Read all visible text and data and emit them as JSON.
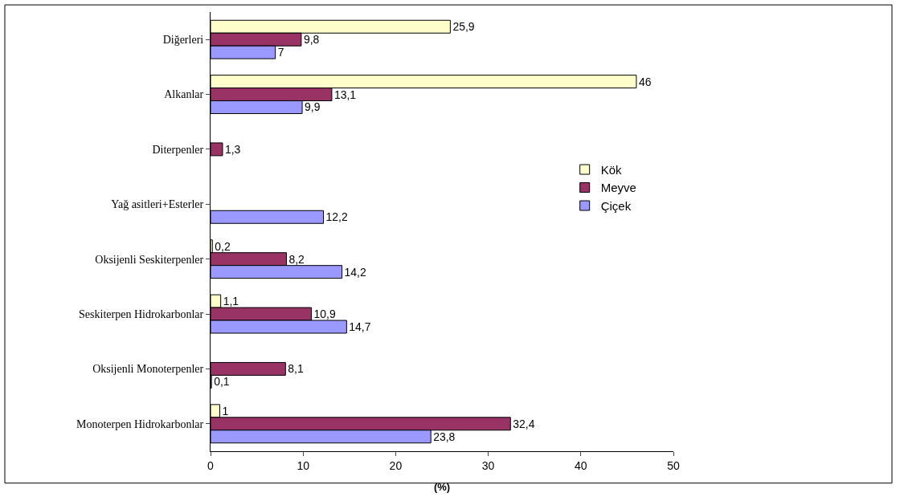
{
  "chart_data": {
    "type": "bar",
    "orientation": "horizontal",
    "xlabel": "(%)",
    "categories": [
      "Diğerleri",
      "Alkanlar",
      "Diterpenler",
      "Yağ asitleri+Esterler",
      "Oksijenli Seskiterpenler",
      "Seskiterpen Hidrokarbonlar",
      "Oksijenli Monoterpenler",
      "Monoterpen Hidrokarbonlar"
    ],
    "series": [
      {
        "name": "Kök",
        "color": "#ffffcc",
        "values": [
          25.9,
          46,
          null,
          null,
          0.2,
          1.1,
          null,
          1
        ],
        "value_labels": [
          "25,9",
          "46",
          null,
          null,
          "0,2",
          "1,1",
          null,
          "1"
        ]
      },
      {
        "name": "Meyve",
        "color": "#993366",
        "values": [
          9.8,
          13.1,
          1.3,
          null,
          8.2,
          10.9,
          8.1,
          32.4
        ],
        "value_labels": [
          "9,8",
          "13,1",
          "1,3",
          null,
          "8,2",
          "10,9",
          "8,1",
          "32,4"
        ]
      },
      {
        "name": "Çiçek",
        "color": "#9999ff",
        "values": [
          7,
          9.9,
          null,
          12.2,
          14.2,
          14.7,
          0.1,
          23.8
        ],
        "value_labels": [
          "7",
          "9,9",
          null,
          "12,2",
          "14,2",
          "14,7",
          "0,1",
          "23,8"
        ]
      }
    ],
    "xlim": [
      0,
      50
    ],
    "xticks": [
      0,
      10,
      20,
      30,
      40,
      50
    ],
    "legend": "right"
  }
}
